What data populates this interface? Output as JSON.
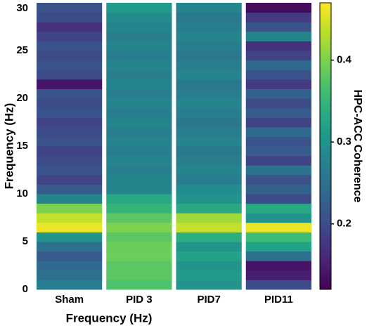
{
  "chart_data": {
    "type": "heatmap",
    "categories": [
      "Sham",
      "PID 3",
      "PID7",
      "PID11"
    ],
    "xlabel": "Frequency (Hz)",
    "ylabel": "Frequency (Hz)",
    "ylim": [
      0,
      30
    ],
    "yticks": [
      0,
      5,
      10,
      15,
      20,
      25,
      30
    ],
    "colormap": "viridis",
    "clim": [
      0.12,
      0.47
    ],
    "cticks": [
      0.2,
      0.3,
      0.4
    ],
    "clabel": "HPC-ACC  Coherence",
    "values": [
      [
        0.27,
        0.25,
        0.24,
        0.22,
        0.25,
        0.3,
        0.46,
        0.44,
        0.4,
        0.28,
        0.22,
        0.19,
        0.21,
        0.2,
        0.19,
        0.21,
        0.2,
        0.19,
        0.21,
        0.2,
        0.21,
        0.14,
        0.2,
        0.21,
        0.2,
        0.21,
        0.19,
        0.17,
        0.2,
        0.21
      ],
      [
        0.37,
        0.38,
        0.38,
        0.39,
        0.39,
        0.38,
        0.4,
        0.38,
        0.35,
        0.33,
        0.28,
        0.28,
        0.27,
        0.28,
        0.27,
        0.28,
        0.27,
        0.28,
        0.27,
        0.28,
        0.27,
        0.28,
        0.27,
        0.28,
        0.27,
        0.28,
        0.27,
        0.28,
        0.29,
        0.31
      ],
      [
        0.3,
        0.31,
        0.3,
        0.32,
        0.3,
        0.34,
        0.44,
        0.42,
        0.33,
        0.3,
        0.29,
        0.27,
        0.28,
        0.27,
        0.26,
        0.28,
        0.27,
        0.26,
        0.27,
        0.28,
        0.27,
        0.26,
        0.28,
        0.27,
        0.26,
        0.27,
        0.28,
        0.27,
        0.26,
        0.28
      ],
      [
        0.2,
        0.15,
        0.14,
        0.25,
        0.32,
        0.36,
        0.46,
        0.3,
        0.33,
        0.2,
        0.23,
        0.21,
        0.25,
        0.19,
        0.22,
        0.21,
        0.24,
        0.19,
        0.22,
        0.2,
        0.23,
        0.18,
        0.21,
        0.24,
        0.19,
        0.17,
        0.28,
        0.21,
        0.18,
        0.13
      ]
    ]
  }
}
